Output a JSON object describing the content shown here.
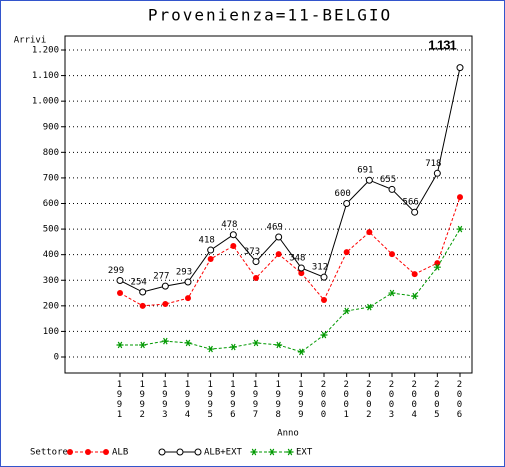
{
  "chart_data": {
    "type": "line",
    "title": "Provenienza=11-BELGIO",
    "ylabel": "Arrivi",
    "xlabel": "Anno",
    "legend_title": "Settore",
    "categories": [
      "1991",
      "1992",
      "1993",
      "1994",
      "1995",
      "1996",
      "1997",
      "1998",
      "1999",
      "2000",
      "2001",
      "2002",
      "2003",
      "2004",
      "2005",
      "2006"
    ],
    "series": [
      {
        "name": "ALB",
        "color": "#ff0000",
        "marker": "dot",
        "dashed": true,
        "values": [
          250,
          200,
          207,
          230,
          383,
          434,
          309,
          402,
          328,
          223,
          410,
          488,
          402,
          324,
          367,
          625
        ]
      },
      {
        "name": "ALB+EXT",
        "color": "#000000",
        "marker": "circle",
        "dashed": false,
        "values": [
          299,
          254,
          277,
          293,
          418,
          478,
          373,
          469,
          348,
          312,
          600,
          691,
          655,
          566,
          718,
          1131
        ],
        "value_labels": [
          "299",
          "254",
          "277",
          "293",
          "418",
          "478",
          "373",
          "469",
          "348",
          "312",
          "600",
          "691",
          "655",
          "566",
          "718",
          "1.131"
        ]
      },
      {
        "name": "EXT",
        "color": "#009900",
        "marker": "star",
        "dashed": true,
        "values": [
          47,
          47,
          62,
          55,
          31,
          39,
          55,
          47,
          20,
          86,
          180,
          195,
          250,
          238,
          351,
          500
        ]
      }
    ],
    "ylim": [
      0,
      1200
    ],
    "yticks": [
      0,
      100,
      200,
      300,
      400,
      500,
      600,
      700,
      800,
      900,
      {
        "value": 1000,
        "label": "1.000"
      },
      {
        "value": 1100,
        "label": "1.100"
      },
      {
        "value": 1200,
        "label": "1.200"
      }
    ],
    "grid": true
  }
}
